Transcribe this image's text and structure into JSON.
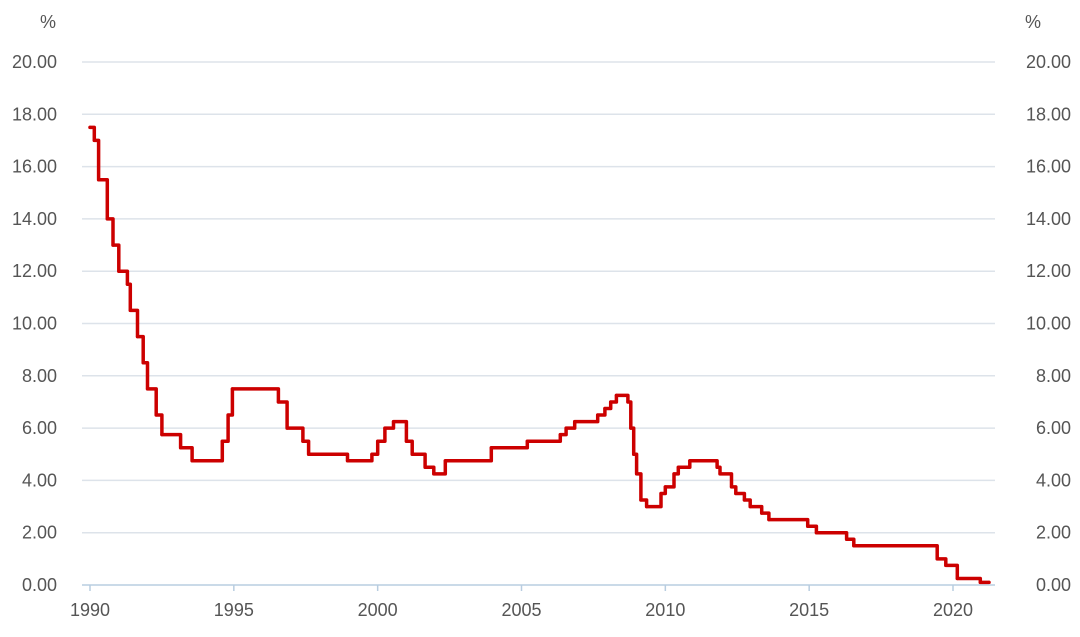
{
  "chart_data": {
    "type": "line",
    "title": "",
    "xlabel": "",
    "ylabel": "",
    "y_unit_left": "%",
    "y_unit_right": "%",
    "xlim": [
      1990,
      2021.8
    ],
    "ylim": [
      0,
      20
    ],
    "grid": "horizontal",
    "legend": "none",
    "x_ticks": [
      1990,
      1995,
      2000,
      2005,
      2010,
      2015,
      2020
    ],
    "x_tick_labels": [
      "1990",
      "1995",
      "2000",
      "2005",
      "2010",
      "2015",
      "2020"
    ],
    "y_ticks": [
      0,
      2,
      4,
      6,
      8,
      10,
      12,
      14,
      16,
      18,
      20
    ],
    "y_tick_labels": [
      "0.00",
      "2.00",
      "4.00",
      "6.00",
      "8.00",
      "10.00",
      "12.00",
      "14.00",
      "16.00",
      "18.00",
      "20.00"
    ],
    "colors": {
      "series_line": "#cc0000",
      "grid": "#dde3ea",
      "x_axis": "#b8cde0",
      "text": "#555555"
    },
    "series": [
      {
        "values_step": [
          [
            1990.0,
            17.5
          ],
          [
            1990.15,
            17.0
          ],
          [
            1990.3,
            15.5
          ],
          [
            1990.6,
            14.0
          ],
          [
            1990.8,
            13.0
          ],
          [
            1991.0,
            12.0
          ],
          [
            1991.3,
            11.5
          ],
          [
            1991.4,
            10.5
          ],
          [
            1991.65,
            9.5
          ],
          [
            1991.85,
            8.5
          ],
          [
            1992.0,
            7.5
          ],
          [
            1992.3,
            6.5
          ],
          [
            1992.5,
            5.75
          ],
          [
            1993.15,
            5.25
          ],
          [
            1993.55,
            4.75
          ],
          [
            1994.6,
            5.5
          ],
          [
            1994.8,
            6.5
          ],
          [
            1994.95,
            7.5
          ],
          [
            1996.55,
            7.0
          ],
          [
            1996.85,
            6.0
          ],
          [
            1997.4,
            5.5
          ],
          [
            1997.6,
            5.0
          ],
          [
            1998.4,
            5.0
          ],
          [
            1998.95,
            4.75
          ],
          [
            1999.8,
            5.0
          ],
          [
            2000.0,
            5.5
          ],
          [
            2000.25,
            6.0
          ],
          [
            2000.55,
            6.25
          ],
          [
            2001.0,
            5.5
          ],
          [
            2001.2,
            5.0
          ],
          [
            2001.65,
            4.5
          ],
          [
            2001.95,
            4.25
          ],
          [
            2002.35,
            4.75
          ],
          [
            2003.95,
            5.25
          ],
          [
            2005.2,
            5.5
          ],
          [
            2006.35,
            5.75
          ],
          [
            2006.55,
            6.0
          ],
          [
            2006.85,
            6.25
          ],
          [
            2007.65,
            6.5
          ],
          [
            2007.9,
            6.75
          ],
          [
            2008.1,
            7.0
          ],
          [
            2008.3,
            7.25
          ],
          [
            2008.7,
            7.0
          ],
          [
            2008.8,
            6.0
          ],
          [
            2008.9,
            5.0
          ],
          [
            2009.0,
            4.25
          ],
          [
            2009.15,
            3.25
          ],
          [
            2009.35,
            3.0
          ],
          [
            2009.85,
            3.5
          ],
          [
            2010.0,
            3.75
          ],
          [
            2010.3,
            4.25
          ],
          [
            2010.45,
            4.5
          ],
          [
            2010.85,
            4.75
          ],
          [
            2011.8,
            4.5
          ],
          [
            2011.9,
            4.25
          ],
          [
            2012.3,
            3.75
          ],
          [
            2012.45,
            3.5
          ],
          [
            2012.75,
            3.25
          ],
          [
            2012.95,
            3.0
          ],
          [
            2013.35,
            2.75
          ],
          [
            2013.6,
            2.5
          ],
          [
            2014.95,
            2.25
          ],
          [
            2015.25,
            2.0
          ],
          [
            2016.3,
            1.75
          ],
          [
            2016.55,
            1.5
          ],
          [
            2019.45,
            1.0
          ],
          [
            2019.75,
            0.75
          ],
          [
            2020.15,
            0.25
          ],
          [
            2020.95,
            0.1
          ],
          [
            2021.25,
            0.1
          ]
        ]
      }
    ]
  }
}
